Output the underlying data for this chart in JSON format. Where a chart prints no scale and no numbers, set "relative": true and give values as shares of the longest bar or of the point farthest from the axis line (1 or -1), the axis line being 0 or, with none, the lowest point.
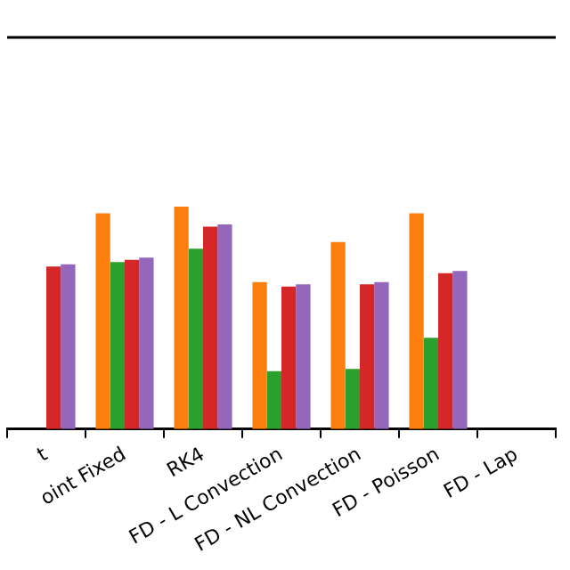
{
  "chart_data": {
    "type": "bar",
    "relative": true,
    "categories": [
      "t",
      "oint Fixed",
      "RK4",
      "FD - L Convection",
      "FD - NL Convection",
      "FD - Poisson",
      "FD - Lap"
    ],
    "series": [
      {
        "color": "#ff7f0e",
        "values": [
          null,
          0.97,
          1.0,
          0.66,
          0.84,
          0.97,
          null
        ]
      },
      {
        "color": "#2ca02c",
        "values": [
          null,
          0.75,
          0.81,
          0.26,
          0.27,
          0.41,
          null
        ]
      },
      {
        "color": "#d62728",
        "values": [
          0.73,
          0.76,
          0.91,
          0.64,
          0.65,
          0.7,
          null
        ]
      },
      {
        "color": "#9467bd",
        "values": [
          0.74,
          0.77,
          0.92,
          0.65,
          0.66,
          0.71,
          null
        ]
      }
    ]
  }
}
